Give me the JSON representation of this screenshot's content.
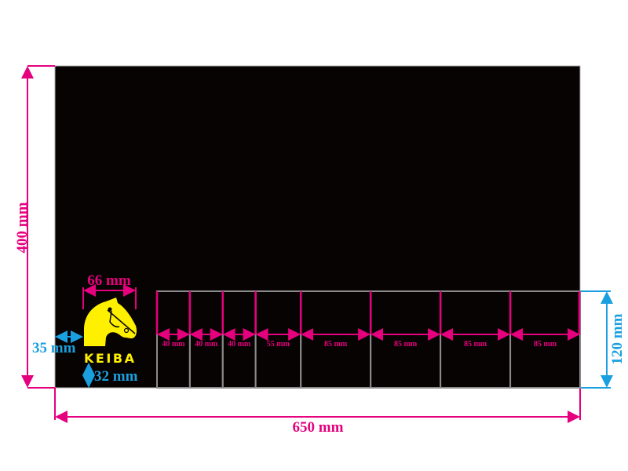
{
  "colors": {
    "panel": "#070302",
    "dimension": "#e5007e",
    "logo_dimension": "#1aa0e0",
    "logo": "#fff000",
    "compartment_border": "#8a8a8a"
  },
  "dimensions": {
    "height": "400 mm",
    "width": "650 mm",
    "compartment_height": "120 mm",
    "logo_width": "66 mm",
    "logo_left_offset": "35 mm",
    "logo_bottom_offset": "32 mm"
  },
  "compartments": [
    {
      "width_mm": 40,
      "label": "40 mm"
    },
    {
      "width_mm": 40,
      "label": "40 mm"
    },
    {
      "width_mm": 40,
      "label": "40 mm"
    },
    {
      "width_mm": 55,
      "label": "55 mm"
    },
    {
      "width_mm": 85,
      "label": "85 mm"
    },
    {
      "width_mm": 85,
      "label": "85 mm"
    },
    {
      "width_mm": 85,
      "label": "85 mm"
    },
    {
      "width_mm": 85,
      "label": "85 mm"
    }
  ],
  "logo": {
    "text": "KEIBA",
    "icon": "horse-head-icon"
  }
}
